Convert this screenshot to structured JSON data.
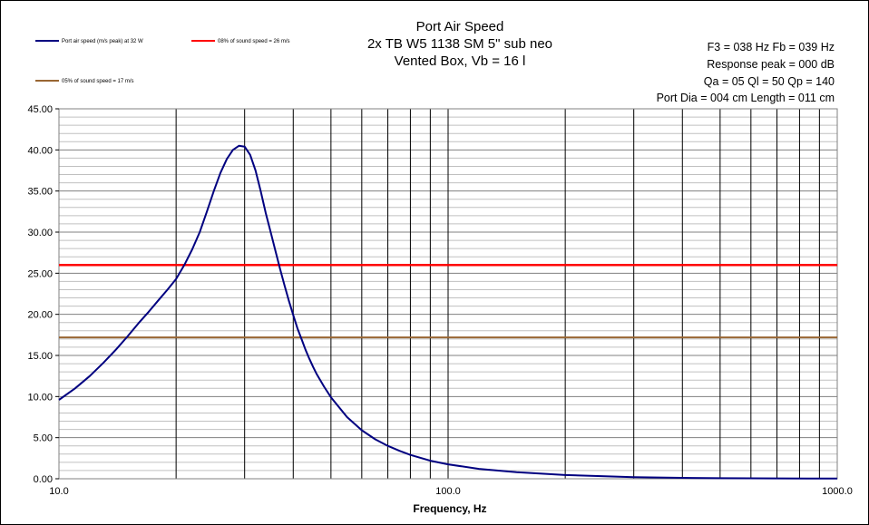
{
  "chart_data": {
    "type": "line",
    "title": [
      "Port Air Speed",
      "2x TB W5 1138 SM 5\" sub neo",
      "Vented Box, Vb = 16 l"
    ],
    "info": [
      "F3 = 038  Hz  Fb = 039  Hz",
      "Response peak = 000  dB",
      "Qa = 05   Ql = 50   Qp = 140",
      "Port Dia = 004  cm  Length = 011  cm"
    ],
    "xlabel": "Frequency, Hz",
    "xscale": "log",
    "xlim": [
      10,
      1000
    ],
    "ylim": [
      0,
      45
    ],
    "y_ticks": [
      "0.00",
      "5.00",
      "10.00",
      "15.00",
      "20.00",
      "25.00",
      "30.00",
      "35.00",
      "40.00",
      "45.00"
    ],
    "x_ticks": [
      "10.0",
      "100.0",
      "1000.0"
    ],
    "grid": true,
    "legend_position": "top-left",
    "series": [
      {
        "name": "Port air speed (m/s peak) at 32 W",
        "color": "#000080",
        "x": [
          10,
          11,
          12,
          13,
          14,
          15,
          16,
          17,
          18,
          19,
          20,
          21,
          22,
          23,
          24,
          25,
          26,
          27,
          28,
          29,
          30,
          31,
          32,
          33,
          34,
          35,
          36,
          37,
          38,
          39,
          40,
          41,
          42,
          43,
          44,
          45,
          46,
          48,
          50,
          55,
          60,
          65,
          70,
          75,
          80,
          90,
          100,
          120,
          150,
          200,
          300,
          400,
          500,
          700,
          1000
        ],
        "y": [
          9.6,
          11.0,
          12.5,
          14.1,
          15.7,
          17.3,
          18.9,
          20.3,
          21.7,
          23.0,
          24.3,
          26.0,
          27.9,
          30.0,
          32.5,
          35.0,
          37.2,
          38.9,
          40.0,
          40.5,
          40.4,
          39.4,
          37.5,
          35.0,
          32.3,
          30.0,
          27.7,
          25.5,
          23.5,
          21.6,
          19.9,
          18.3,
          17.0,
          15.7,
          14.6,
          13.6,
          12.7,
          11.2,
          9.9,
          7.5,
          5.9,
          4.8,
          4.0,
          3.4,
          2.9,
          2.2,
          1.75,
          1.2,
          0.8,
          0.45,
          0.2,
          0.11,
          0.07,
          0.04,
          0.02
        ]
      },
      {
        "name": "08% of sound speed = 26 m/s",
        "color": "#ff0000",
        "x": [
          10,
          1000
        ],
        "y": [
          26,
          26
        ]
      },
      {
        "name": "05% of sound speed = 17 m/s",
        "color": "#996633",
        "x": [
          10,
          1000
        ],
        "y": [
          17.2,
          17.2
        ]
      }
    ]
  }
}
